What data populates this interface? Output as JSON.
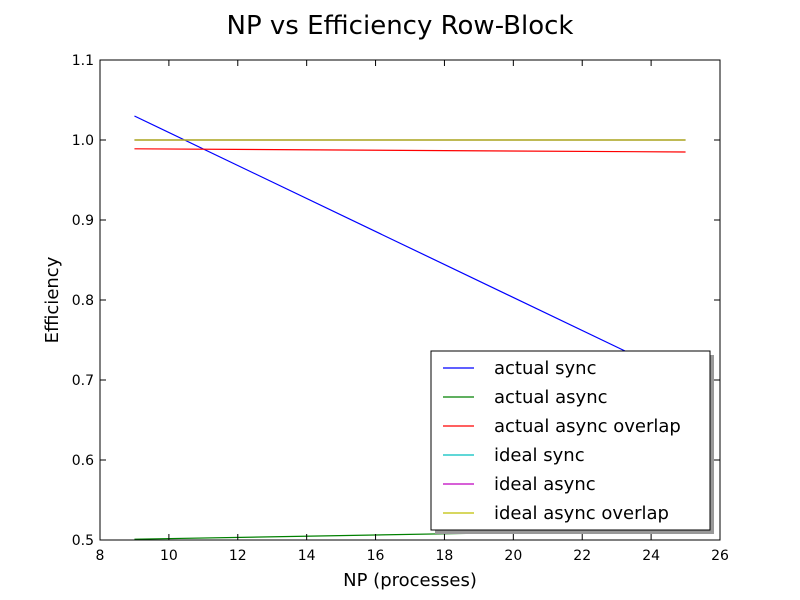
{
  "chart_data": {
    "type": "line",
    "title": "NP vs Efficiency Row-Block",
    "xlabel": "NP (processes)",
    "ylabel": "Efficiency",
    "xlim": [
      8,
      26
    ],
    "ylim": [
      0.5,
      1.1
    ],
    "x_ticks": [
      "8",
      "10",
      "12",
      "14",
      "16",
      "18",
      "20",
      "22",
      "24",
      "26"
    ],
    "y_ticks": [
      "0.5",
      "0.6",
      "0.7",
      "0.8",
      "0.9",
      "1.0",
      "1.1"
    ],
    "grid": false,
    "legend_position": "lower-right",
    "x": [
      9,
      25
    ],
    "series": [
      {
        "name": "actual sync",
        "color": "#0000ff",
        "values": [
          1.03,
          0.7
        ]
      },
      {
        "name": "actual async",
        "color": "#008000",
        "values": [
          0.501,
          0.513
        ]
      },
      {
        "name": "actual async overlap",
        "color": "#ff0000",
        "values": [
          0.989,
          0.985
        ]
      },
      {
        "name": "ideal sync",
        "color": "#00bfbf",
        "values": [
          1.0,
          1.0
        ]
      },
      {
        "name": "ideal async",
        "color": "#bf00bf",
        "values": [
          1.0,
          1.0
        ]
      },
      {
        "name": "ideal async overlap",
        "color": "#bfbf00",
        "values": [
          1.0,
          1.0
        ]
      }
    ]
  }
}
